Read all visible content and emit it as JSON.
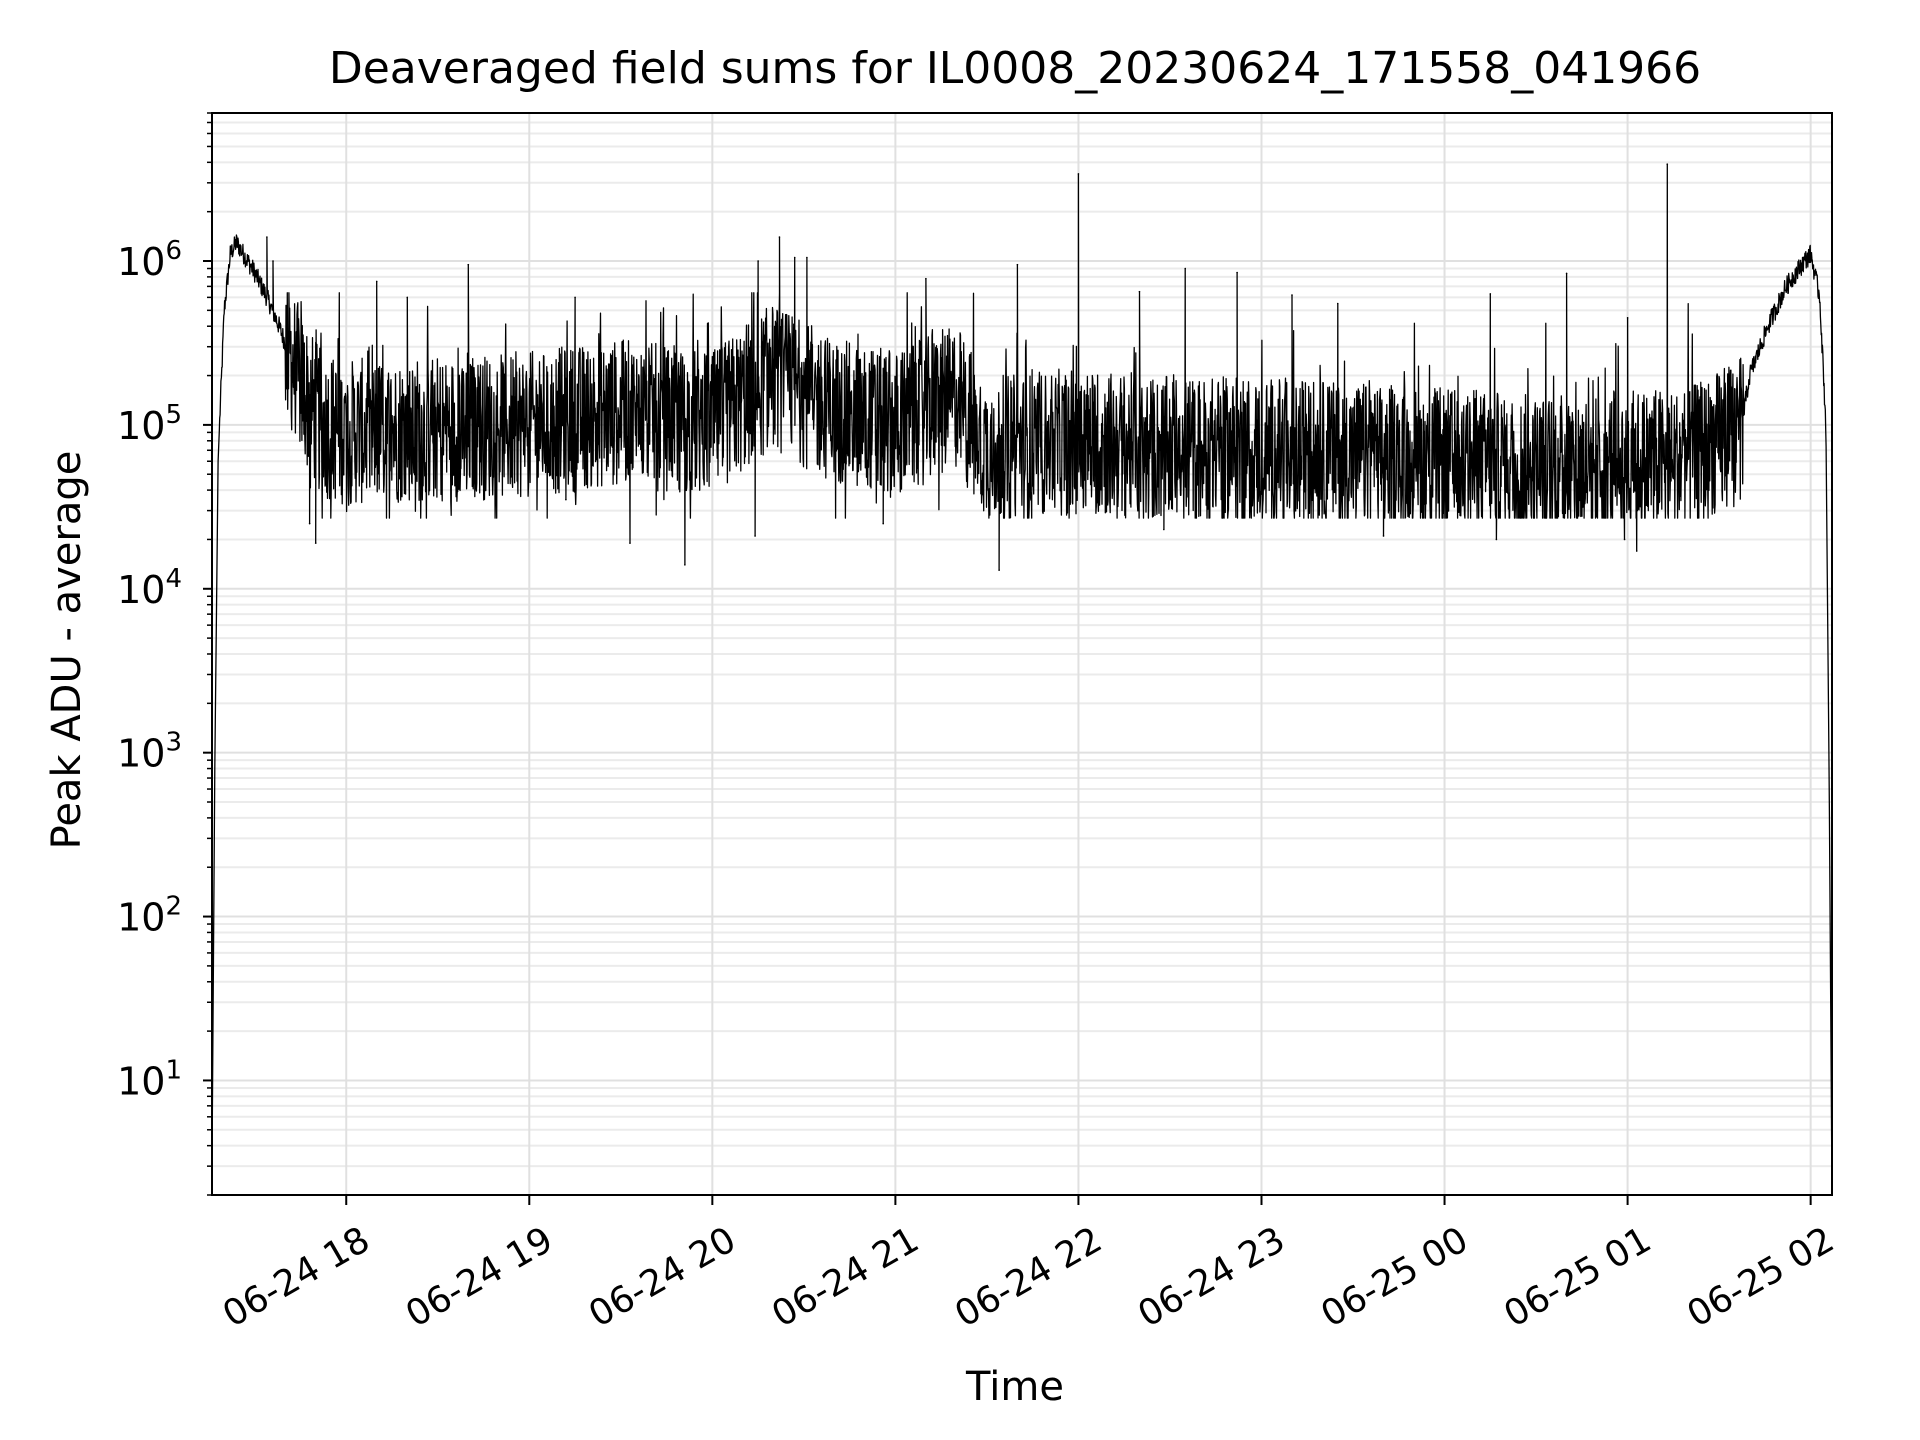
{
  "chart_data": {
    "type": "line",
    "title": "Deaveraged field sums for IL0008_20230624_171558_041966",
    "xlabel": "Time",
    "ylabel": "Peak ADU - average",
    "yscale": "log",
    "ylim": [
      2,
      8000000
    ],
    "xlim": [
      "2023-06-24 17:16",
      "2023-06-25 02:07"
    ],
    "grid": true,
    "grid_minor": true,
    "x_ticks": [
      {
        "value": "2023-06-24 18:00",
        "label": "06-24 18"
      },
      {
        "value": "2023-06-24 19:00",
        "label": "06-24 19"
      },
      {
        "value": "2023-06-24 20:00",
        "label": "06-24 20"
      },
      {
        "value": "2023-06-24 21:00",
        "label": "06-24 21"
      },
      {
        "value": "2023-06-24 22:00",
        "label": "06-24 22"
      },
      {
        "value": "2023-06-24 23:00",
        "label": "06-24 23"
      },
      {
        "value": "2023-06-25 00:00",
        "label": "06-25 00"
      },
      {
        "value": "2023-06-25 01:00",
        "label": "06-25 01"
      },
      {
        "value": "2023-06-25 02:00",
        "label": "06-25 02"
      }
    ],
    "y_ticks": [
      {
        "value": 10,
        "base": "10",
        "exp": "1"
      },
      {
        "value": 100,
        "base": "10",
        "exp": "2"
      },
      {
        "value": 1000,
        "base": "10",
        "exp": "3"
      },
      {
        "value": 10000,
        "base": "10",
        "exp": "4"
      },
      {
        "value": 100000,
        "base": "10",
        "exp": "5"
      },
      {
        "value": 1000000,
        "base": "10",
        "exp": "6"
      }
    ],
    "series": [
      {
        "color": "#000000",
        "points": [
          [
            "2023-06-24 17:16",
            3
          ],
          [
            "2023-06-24 17:17",
            1200
          ],
          [
            "2023-06-24 17:18",
            60000
          ],
          [
            "2023-06-24 17:20",
            500000
          ],
          [
            "2023-06-24 17:22",
            1100000
          ],
          [
            "2023-06-24 17:24",
            1300000
          ],
          [
            "2023-06-24 17:27",
            1050000
          ],
          [
            "2023-06-24 17:30",
            850000
          ],
          [
            "2023-06-24 17:34",
            600000
          ],
          [
            "2023-06-24 17:38",
            400000
          ],
          [
            "2023-06-24 17:42",
            250000
          ],
          [
            "2023-06-24 17:47",
            150000
          ],
          [
            "2023-06-24 17:52",
            100000
          ],
          [
            "2023-06-24 18:00",
            90000
          ],
          [
            "2023-06-24 19:00",
            100000
          ],
          [
            "2023-06-24 19:30",
            120000
          ],
          [
            "2023-06-24 20:00",
            100000
          ],
          [
            "2023-06-24 20:20",
            200000
          ],
          [
            "2023-06-24 20:40",
            120000
          ],
          [
            "2023-06-24 21:00",
            100000
          ],
          [
            "2023-06-24 21:20",
            150000
          ],
          [
            "2023-06-24 21:30",
            70000
          ],
          [
            "2023-06-24 22:00",
            80000
          ],
          [
            "2023-06-24 22:30",
            70000
          ],
          [
            "2023-06-24 23:00",
            70000
          ],
          [
            "2023-06-24 23:30",
            65000
          ],
          [
            "2023-06-25 00:00",
            60000
          ],
          [
            "2023-06-25 00:30",
            55000
          ],
          [
            "2023-06-25 01:00",
            60000
          ],
          [
            "2023-06-25 01:20",
            60000
          ],
          [
            "2023-06-25 01:37",
            90000
          ],
          [
            "2023-06-25 01:40",
            200000
          ],
          [
            "2023-06-25 01:46",
            400000
          ],
          [
            "2023-06-25 01:52",
            700000
          ],
          [
            "2023-06-25 01:58",
            1000000
          ],
          [
            "2023-06-25 02:00",
            1100000
          ],
          [
            "2023-06-25 02:03",
            600000
          ],
          [
            "2023-06-25 02:05",
            100000
          ],
          [
            "2023-06-25 02:06",
            1000
          ],
          [
            "2023-06-25 02:07",
            2
          ]
        ],
        "noise_band": {
          "start": "2023-06-24 17:40",
          "end": "2023-06-25 01:38",
          "typical_low": 30000,
          "typical_high": 400000
        },
        "spikes": [
          [
            "2023-06-24 17:34",
            1400000
          ],
          [
            "2023-06-24 17:36",
            1000000
          ],
          [
            "2023-06-24 18:10",
            750000
          ],
          [
            "2023-06-24 18:20",
            600000
          ],
          [
            "2023-06-24 18:40",
            950000
          ],
          [
            "2023-06-24 19:15",
            600000
          ],
          [
            "2023-06-24 20:15",
            1000000
          ],
          [
            "2023-06-24 20:22",
            1400000
          ],
          [
            "2023-06-24 20:27",
            1050000
          ],
          [
            "2023-06-24 20:31",
            1050000
          ],
          [
            "2023-06-24 21:10",
            780000
          ],
          [
            "2023-06-24 21:40",
            950000
          ],
          [
            "2023-06-24 22:00",
            3400000
          ],
          [
            "2023-06-24 22:20",
            650000
          ],
          [
            "2023-06-24 22:35",
            900000
          ],
          [
            "2023-06-24 22:52",
            850000
          ],
          [
            "2023-06-24 23:10",
            620000
          ],
          [
            "2023-06-24 23:25",
            550000
          ],
          [
            "2023-06-25 00:15",
            630000
          ],
          [
            "2023-06-25 00:40",
            840000
          ],
          [
            "2023-06-25 01:00",
            450000
          ],
          [
            "2023-06-25 01:13",
            3900000
          ]
        ],
        "dips": [
          [
            "2023-06-24 17:48",
            25000
          ],
          [
            "2023-06-24 17:50",
            19000
          ],
          [
            "2023-06-24 19:12",
            35000
          ],
          [
            "2023-06-24 19:33",
            19000
          ],
          [
            "2023-06-24 19:51",
            14000
          ],
          [
            "2023-06-24 20:14",
            21000
          ],
          [
            "2023-06-24 20:56",
            25000
          ],
          [
            "2023-06-24 21:34",
            13000
          ],
          [
            "2023-06-24 22:28",
            23000
          ],
          [
            "2023-06-24 23:40",
            21000
          ],
          [
            "2023-06-25 00:17",
            20000
          ],
          [
            "2023-06-25 00:59",
            20000
          ],
          [
            "2023-06-25 01:03",
            17000
          ]
        ]
      }
    ]
  }
}
